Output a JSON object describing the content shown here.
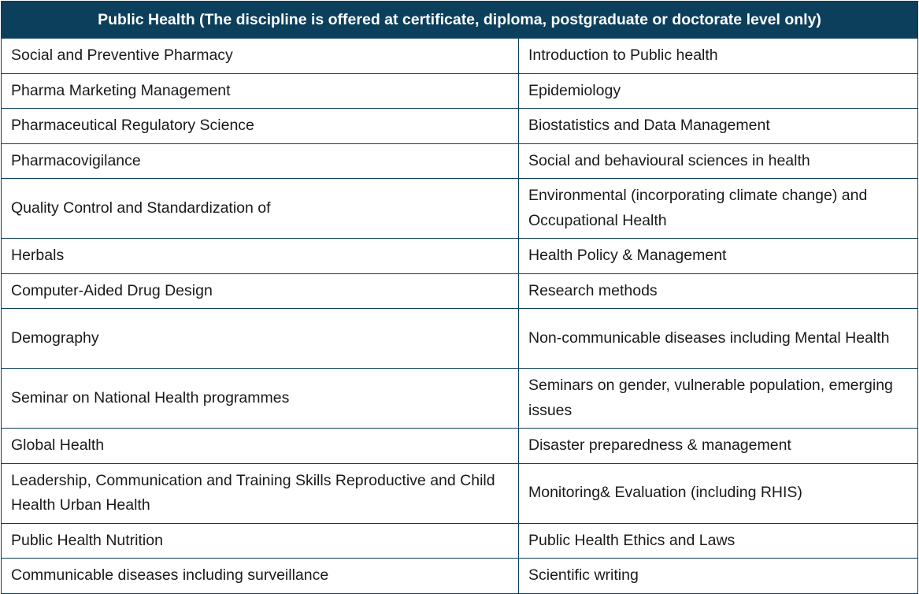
{
  "table": {
    "title": "Public Health (The discipline is offered at certificate, diploma, postgraduate or doctorate level only)",
    "rows": [
      {
        "left": "Social and Preventive Pharmacy",
        "right": "Introduction to Public health"
      },
      {
        "left": "Pharma Marketing Management",
        "right": "Epidemiology"
      },
      {
        "left": "Pharmaceutical Regulatory Science",
        "right": "Biostatistics and Data Management"
      },
      {
        "left": "Pharmacovigilance",
        "right": "Social and behavioural sciences in health"
      },
      {
        "left": "Quality Control and Standardization of",
        "right": "Environmental (incorporating climate change) and Occupational Health"
      },
      {
        "left": "Herbals",
        "right": "Health Policy & Management"
      },
      {
        "left": "Computer-Aided Drug Design",
        "right": "Research methods"
      },
      {
        "left": "Demography",
        "right": "Non-communicable diseases including Mental Health"
      },
      {
        "left": "Seminar on National Health programmes",
        "right": "Seminars on gender, vulnerable population, emerging issues"
      },
      {
        "left": "Global Health",
        "right": "Disaster preparedness & management"
      },
      {
        "left": "Leadership, Communication and Training Skills Reproductive and Child Health Urban Health",
        "right": "Monitoring& Evaluation (including RHIS)"
      },
      {
        "left": "Public Health Nutrition",
        "right": "Public Health Ethics and Laws"
      },
      {
        "left": "Communicable diseases including surveillance",
        "right": "Scientific writing"
      }
    ]
  },
  "colors": {
    "header_bg": "#0b3f5c",
    "header_text": "#ffffff",
    "border": "#0b3f5c"
  }
}
